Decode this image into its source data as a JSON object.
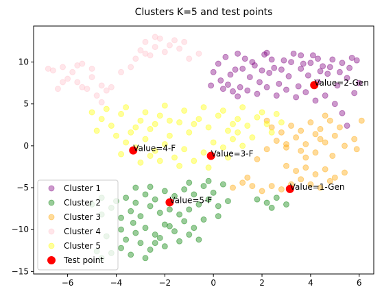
{
  "chart_data": {
    "type": "scatter",
    "title": "Clusters K=5 and test points",
    "xlabel": "",
    "ylabel": "",
    "xlim": [
      -7.4,
      6.6
    ],
    "ylim": [
      -15.3,
      14.3
    ],
    "x_ticks": [
      -6,
      -4,
      -2,
      0,
      2,
      4,
      6
    ],
    "y_ticks": [
      -15,
      -10,
      -5,
      0,
      5,
      10
    ],
    "x_tick_labels": [
      "−6",
      "−4",
      "−2",
      "0",
      "2",
      "4",
      "6"
    ],
    "y_tick_labels": [
      "−15",
      "−10",
      "−5",
      "0",
      "5",
      "10"
    ],
    "grid": false,
    "legend_position": "lower-left",
    "series": [
      {
        "name": "Cluster 1",
        "color": "#800080",
        "alpha": 0.4,
        "points": [
          [
            0.2,
            9.8
          ],
          [
            0.5,
            10.6
          ],
          [
            0.9,
            9.1
          ],
          [
            1.3,
            10.4
          ],
          [
            1.7,
            9.6
          ],
          [
            2.1,
            10.9
          ],
          [
            2.5,
            9.3
          ],
          [
            2.9,
            10.2
          ],
          [
            3.3,
            11.0
          ],
          [
            3.7,
            9.8
          ],
          [
            4.1,
            10.8
          ],
          [
            4.5,
            9.5
          ],
          [
            4.9,
            10.3
          ],
          [
            5.3,
            9.9
          ],
          [
            5.7,
            10.5
          ],
          [
            6.0,
            7.5
          ],
          [
            5.8,
            6.3
          ],
          [
            5.5,
            8.1
          ],
          [
            5.1,
            7.2
          ],
          [
            4.7,
            8.6
          ],
          [
            4.3,
            7.6
          ],
          [
            3.9,
            8.4
          ],
          [
            3.5,
            7.1
          ],
          [
            3.1,
            8.3
          ],
          [
            2.7,
            7.4
          ],
          [
            2.3,
            8.7
          ],
          [
            1.9,
            7.6
          ],
          [
            1.5,
            8.2
          ],
          [
            1.1,
            7.0
          ],
          [
            0.7,
            8.5
          ],
          [
            0.3,
            7.8
          ],
          [
            0.0,
            8.8
          ],
          [
            -0.1,
            7.2
          ],
          [
            0.4,
            6.8
          ],
          [
            0.8,
            6.5
          ],
          [
            1.2,
            9.2
          ],
          [
            1.6,
            10.0
          ],
          [
            2.0,
            9.0
          ],
          [
            2.4,
            10.3
          ],
          [
            2.8,
            9.1
          ],
          [
            3.2,
            10.0
          ],
          [
            3.6,
            9.2
          ],
          [
            4.0,
            9.9
          ],
          [
            4.4,
            8.9
          ],
          [
            4.8,
            9.4
          ],
          [
            5.2,
            8.8
          ],
          [
            5.6,
            9.3
          ],
          [
            5.0,
            5.0
          ],
          [
            5.3,
            3.9
          ],
          [
            4.6,
            6.0
          ],
          [
            4.2,
            5.4
          ],
          [
            3.8,
            6.4
          ],
          [
            3.4,
            5.8
          ],
          [
            3.0,
            6.7
          ],
          [
            2.6,
            6.0
          ],
          [
            2.2,
            7.0
          ],
          [
            1.8,
            6.2
          ],
          [
            1.4,
            6.6
          ],
          [
            1.0,
            5.9
          ],
          [
            0.6,
            7.3
          ],
          [
            5.5,
            2.4
          ],
          [
            3.6,
            10.8
          ],
          [
            2.2,
            11.1
          ],
          [
            1.0,
            11.0
          ],
          [
            4.3,
            10.4
          ],
          [
            5.9,
            10.2
          ]
        ]
      },
      {
        "name": "Cluster 2",
        "color": "#008000",
        "alpha": 0.4,
        "points": [
          [
            -4.2,
            -12.8
          ],
          [
            -3.8,
            -12.2
          ],
          [
            -3.4,
            -13.0
          ],
          [
            -4.6,
            -13.4
          ],
          [
            -3.0,
            -11.6
          ],
          [
            -2.6,
            -12.4
          ],
          [
            -3.6,
            -11.2
          ],
          [
            -2.2,
            -11.0
          ],
          [
            -3.2,
            -10.4
          ],
          [
            -2.8,
            -9.8
          ],
          [
            -2.4,
            -10.6
          ],
          [
            -2.0,
            -9.4
          ],
          [
            -1.6,
            -10.2
          ],
          [
            -1.2,
            -9.0
          ],
          [
            -0.8,
            -9.8
          ],
          [
            -0.4,
            -8.8
          ],
          [
            -1.4,
            -8.2
          ],
          [
            -1.8,
            -7.6
          ],
          [
            -2.2,
            -8.0
          ],
          [
            -2.6,
            -7.2
          ],
          [
            -3.0,
            -8.4
          ],
          [
            -3.4,
            -7.8
          ],
          [
            -3.8,
            -8.6
          ],
          [
            -4.2,
            -7.4
          ],
          [
            -4.6,
            -8.2
          ],
          [
            -4.0,
            -6.6
          ],
          [
            -3.6,
            -6.2
          ],
          [
            -3.2,
            -6.8
          ],
          [
            -2.8,
            -5.8
          ],
          [
            -2.4,
            -6.4
          ],
          [
            -2.0,
            -5.4
          ],
          [
            -1.6,
            -6.0
          ],
          [
            -1.2,
            -5.2
          ],
          [
            -0.8,
            -5.8
          ],
          [
            -0.4,
            -4.8
          ],
          [
            0.0,
            -5.6
          ],
          [
            0.4,
            -4.6
          ],
          [
            -0.6,
            -7.0
          ],
          [
            -1.0,
            -7.6
          ],
          [
            0.2,
            -7.2
          ],
          [
            -0.2,
            -6.4
          ],
          [
            -1.8,
            -9.6
          ],
          [
            -2.4,
            -11.6
          ],
          [
            -1.4,
            -11.4
          ],
          [
            -3.8,
            -10.0
          ],
          [
            -2.0,
            -12.0
          ],
          [
            -4.4,
            -10.8
          ],
          [
            1.8,
            -6.4
          ],
          [
            2.2,
            -6.8
          ],
          [
            2.6,
            -6.2
          ],
          [
            3.0,
            -7.0
          ],
          [
            0.6,
            -6.6
          ],
          [
            -0.2,
            -4.2
          ],
          [
            -1.0,
            -4.4
          ],
          [
            -2.6,
            -4.9
          ],
          [
            -3.2,
            -5.0
          ],
          [
            -4.6,
            -6.2
          ],
          [
            -5.0,
            -7.0
          ],
          [
            -2.8,
            -13.4
          ],
          [
            -4.8,
            -12.6
          ],
          [
            -3.3,
            -9.2
          ],
          [
            -1.0,
            -10.6
          ],
          [
            0.2,
            -8.4
          ],
          [
            -0.6,
            -11.2
          ],
          [
            2.4,
            -7.4
          ]
        ]
      },
      {
        "name": "Cluster 3",
        "color": "#FFA500",
        "alpha": 0.4,
        "points": [
          [
            2.2,
            -0.4
          ],
          [
            2.6,
            0.6
          ],
          [
            3.0,
            -0.2
          ],
          [
            3.4,
            1.0
          ],
          [
            3.8,
            0.2
          ],
          [
            4.2,
            1.4
          ],
          [
            4.6,
            0.4
          ],
          [
            5.0,
            1.2
          ],
          [
            5.4,
            0.0
          ],
          [
            5.8,
            0.8
          ],
          [
            3.2,
            2.4
          ],
          [
            3.6,
            1.8
          ],
          [
            4.0,
            2.8
          ],
          [
            4.4,
            2.0
          ],
          [
            4.8,
            3.0
          ],
          [
            5.2,
            2.2
          ],
          [
            2.8,
            1.6
          ],
          [
            2.4,
            2.2
          ],
          [
            3.0,
            -2.4
          ],
          [
            3.4,
            -3.0
          ],
          [
            3.8,
            -2.6
          ],
          [
            4.2,
            -3.4
          ],
          [
            4.6,
            -2.8
          ],
          [
            5.0,
            -3.8
          ],
          [
            3.6,
            -4.0
          ],
          [
            4.0,
            -4.6
          ],
          [
            4.4,
            -5.0
          ],
          [
            4.8,
            -4.2
          ],
          [
            3.2,
            -4.6
          ],
          [
            2.8,
            -5.2
          ],
          [
            2.4,
            -4.8
          ],
          [
            2.0,
            -5.4
          ],
          [
            1.6,
            -4.8
          ],
          [
            1.2,
            -4.4
          ],
          [
            0.8,
            -5.0
          ],
          [
            5.4,
            -3.2
          ],
          [
            6.1,
            3.0
          ],
          [
            5.9,
            -0.4
          ],
          [
            1.8,
            -1.6
          ],
          [
            4.2,
            -0.8
          ],
          [
            3.8,
            -1.4
          ],
          [
            2.2,
            3.0
          ],
          [
            4.6,
            3.6
          ],
          [
            3.0,
            0.2
          ],
          [
            3.6,
            -0.6
          ],
          [
            4.9,
            -1.2
          ],
          [
            1.4,
            -3.8
          ],
          [
            4.4,
            0.8
          ]
        ]
      },
      {
        "name": "Cluster 4",
        "color": "#FFC0CB",
        "alpha": 0.4,
        "points": [
          [
            -6.2,
            9.4
          ],
          [
            -5.8,
            8.8
          ],
          [
            -5.4,
            9.8
          ],
          [
            -5.0,
            8.2
          ],
          [
            -4.6,
            7.2
          ],
          [
            -5.2,
            6.8
          ],
          [
            -5.6,
            7.6
          ],
          [
            -6.0,
            8.0
          ],
          [
            -6.4,
            6.8
          ],
          [
            -6.8,
            9.2
          ],
          [
            -4.8,
            6.0
          ],
          [
            -4.4,
            6.6
          ],
          [
            -5.0,
            9.2
          ],
          [
            -5.6,
            9.6
          ],
          [
            -6.6,
            9.0
          ],
          [
            -4.2,
            7.0
          ],
          [
            -2.4,
            11.8
          ],
          [
            -2.8,
            12.4
          ],
          [
            -2.2,
            12.8
          ],
          [
            -1.8,
            12.0
          ],
          [
            -2.6,
            10.8
          ],
          [
            -3.0,
            11.4
          ],
          [
            -1.4,
            11.6
          ],
          [
            -1.0,
            10.4
          ],
          [
            -2.0,
            11.2
          ],
          [
            -1.6,
            12.6
          ],
          [
            -2.8,
            11.0
          ],
          [
            -2.4,
            13.0
          ],
          [
            -3.2,
            10.4
          ],
          [
            -0.6,
            11.0
          ],
          [
            -1.2,
            12.4
          ],
          [
            -4.6,
            5.2
          ],
          [
            -5.4,
            7.0
          ],
          [
            -3.8,
            8.8
          ],
          [
            -6.2,
            7.6
          ],
          [
            -3.4,
            9.4
          ]
        ]
      },
      {
        "name": "Cluster 5",
        "color": "#FFFF00",
        "alpha": 0.4,
        "points": [
          [
            -4.6,
            3.2
          ],
          [
            -4.2,
            2.4
          ],
          [
            -3.8,
            3.8
          ],
          [
            -3.4,
            1.6
          ],
          [
            -3.0,
            3.0
          ],
          [
            -2.6,
            2.0
          ],
          [
            -2.2,
            3.6
          ],
          [
            -1.8,
            1.2
          ],
          [
            -1.4,
            2.8
          ],
          [
            -1.0,
            1.6
          ],
          [
            -0.6,
            3.2
          ],
          [
            -0.2,
            2.2
          ],
          [
            0.2,
            3.6
          ],
          [
            0.6,
            1.8
          ],
          [
            1.0,
            3.2
          ],
          [
            1.4,
            2.4
          ],
          [
            1.8,
            3.4
          ],
          [
            2.2,
            2.6
          ],
          [
            2.6,
            3.8
          ],
          [
            -4.0,
            1.2
          ],
          [
            -3.6,
            0.4
          ],
          [
            -3.2,
            -0.2
          ],
          [
            -2.8,
            0.8
          ],
          [
            -2.4,
            -0.6
          ],
          [
            -2.0,
            0.2
          ],
          [
            -1.6,
            -1.4
          ],
          [
            -1.2,
            -0.4
          ],
          [
            -0.8,
            -1.8
          ],
          [
            -0.4,
            -0.8
          ],
          [
            0.0,
            0.4
          ],
          [
            0.4,
            -0.2
          ],
          [
            0.8,
            0.8
          ],
          [
            1.2,
            0.0
          ],
          [
            1.6,
            1.0
          ],
          [
            -2.2,
            -1.8
          ],
          [
            -1.4,
            -2.4
          ],
          [
            -2.6,
            -1.2
          ],
          [
            -3.0,
            -2.0
          ],
          [
            -4.4,
            4.4
          ],
          [
            -3.6,
            4.6
          ],
          [
            -2.8,
            4.0
          ],
          [
            -2.0,
            4.8
          ],
          [
            -1.2,
            4.2
          ],
          [
            -0.4,
            4.6
          ],
          [
            0.4,
            4.2
          ],
          [
            1.2,
            4.6
          ],
          [
            2.0,
            4.0
          ],
          [
            -4.8,
            1.8
          ],
          [
            -2.4,
            2.6
          ],
          [
            -0.8,
            2.6
          ],
          [
            0.8,
            2.6
          ],
          [
            2.4,
            1.6
          ],
          [
            -3.8,
            -1.0
          ],
          [
            -0.2,
            -2.6
          ],
          [
            -1.8,
            3.0
          ],
          [
            0.6,
            -1.4
          ],
          [
            2.8,
            2.8
          ],
          [
            -5.0,
            4.0
          ],
          [
            -3.2,
            2.2
          ],
          [
            1.0,
            1.6
          ]
        ]
      },
      {
        "name": "Test point",
        "color": "#FF0000",
        "alpha": 1,
        "points": [
          [
            3.15,
            -5.15
          ],
          [
            4.15,
            7.25
          ],
          [
            -0.1,
            -1.2
          ],
          [
            -3.3,
            -0.55
          ],
          [
            -1.8,
            -6.75
          ]
        ]
      }
    ],
    "annotations": [
      {
        "x": 3.15,
        "y": -5.15,
        "text": "Value=1-Gen"
      },
      {
        "x": 4.15,
        "y": 7.25,
        "text": "Value=2-Gen"
      },
      {
        "x": -0.1,
        "y": -1.2,
        "text": "Value=3-F"
      },
      {
        "x": -3.3,
        "y": -0.55,
        "text": "Value=4-F"
      },
      {
        "x": -1.8,
        "y": -6.75,
        "text": "Value=5-F"
      }
    ]
  }
}
